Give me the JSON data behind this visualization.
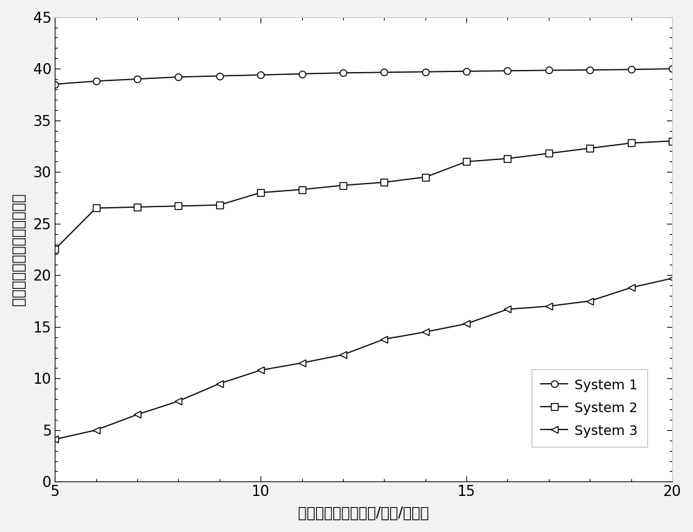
{
  "x": [
    5,
    6,
    7,
    8,
    9,
    10,
    11,
    12,
    13,
    14,
    15,
    16,
    17,
    18,
    19,
    20
  ],
  "system1": [
    38.5,
    38.8,
    39.0,
    39.2,
    39.3,
    39.4,
    39.5,
    39.6,
    39.65,
    39.7,
    39.75,
    39.8,
    39.85,
    39.88,
    39.92,
    40.0
  ],
  "system2": [
    22.5,
    26.5,
    26.6,
    26.7,
    26.8,
    28.0,
    28.3,
    28.7,
    29.0,
    29.5,
    31.0,
    31.3,
    31.8,
    32.3,
    32.8,
    33.0
  ],
  "system3": [
    4.1,
    5.0,
    6.5,
    7.8,
    9.5,
    10.8,
    11.5,
    12.3,
    13.8,
    14.5,
    15.3,
    16.7,
    17.0,
    17.5,
    18.8,
    19.7
  ],
  "xlabel": "分组到达速率（包数/时隙/用户）",
  "ylabel": "实时用户的平均时延（毫秒）",
  "xlim": [
    5,
    20
  ],
  "ylim": [
    0,
    45
  ],
  "xticks": [
    5,
    10,
    15,
    20
  ],
  "yticks": [
    0,
    5,
    10,
    15,
    20,
    25,
    30,
    35,
    40,
    45
  ],
  "legend_labels": [
    "System 1",
    "System 2",
    "System 3"
  ],
  "line_color": "#000000",
  "marker_size": 7,
  "linewidth": 1.2,
  "xlabel_fontsize": 15,
  "ylabel_fontsize": 15,
  "tick_fontsize": 15,
  "legend_fontsize": 14,
  "figsize": [
    10.0,
    7.68
  ],
  "dpi": 100,
  "bg_color": "#ffffff",
  "fig_bg_color": "#f2f2f2",
  "top_spine_color": "#c8c8e8",
  "right_spine_color": "#c8c8e8"
}
